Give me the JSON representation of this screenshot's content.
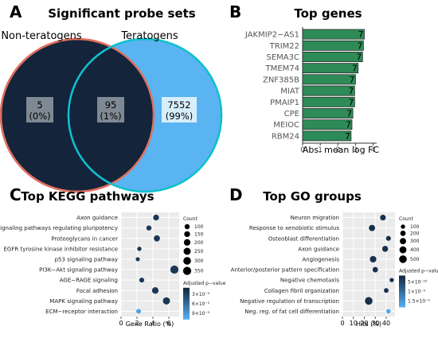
{
  "panel_labels": [
    "A",
    "B",
    "C",
    "D"
  ],
  "chart_data": [
    {
      "type": "venn",
      "title": "Significant probe sets",
      "sets": [
        "Non-teratogens",
        "Teratogens"
      ],
      "regions": [
        {
          "count": "5",
          "percent": "(0%)"
        },
        {
          "count": "95",
          "percent": "(1%)"
        },
        {
          "count": "7552",
          "percent": "(99%)"
        }
      ],
      "colors": {
        "left_fill": "#14243a",
        "left_edge": "#e07060",
        "right_fill": "#5ab4f2",
        "right_edge": "#10c0cc",
        "overlap_fill": "#14243a"
      }
    },
    {
      "type": "bar",
      "orientation": "horizontal",
      "title": "Top genes",
      "categories": [
        "JAKMIP2−AS1",
        "TRIM22",
        "SEMA3C",
        "TMEM74",
        "ZNF385B",
        "MIAT",
        "PMAIP1",
        "CPE",
        "MEIOC",
        "RBM24"
      ],
      "values": [
        3.5,
        3.45,
        3.4,
        3.15,
        3.0,
        2.95,
        2.95,
        2.85,
        2.8,
        2.75
      ],
      "bar_labels": [
        "7",
        "7",
        "7",
        "7",
        "7",
        "7",
        "7",
        "7",
        "7",
        "7"
      ],
      "xlabel": "Abs. mean log FC",
      "xlim": [
        0,
        4.2
      ],
      "xticks": [
        "0",
        "1",
        "2",
        "3",
        "4"
      ],
      "bar_color": "#2e8b57"
    },
    {
      "type": "scatter",
      "title": "Top KEGG pathways",
      "categories": [
        "Axon guidance",
        "Signaling pathways regulating pluripotency",
        "Proteoglycans in cancer",
        "EGFR tyrosine kinase inhibitor resistance",
        "p53 signaling pathway",
        "PI3K−Akt signaling pathway",
        "AGE−RAGE signaling",
        "Focal adhesion",
        "MAPK signaling pathway",
        "ECM−receptor interaction"
      ],
      "x": [
        4.4,
        3.5,
        4.5,
        2.3,
        2.1,
        6.7,
        2.6,
        4.3,
        5.7,
        2.2
      ],
      "sizes": [
        150,
        100,
        170,
        60,
        50,
        350,
        90,
        200,
        250,
        80
      ],
      "padj": [
        3e-05,
        3e-05,
        3e-05,
        3e-05,
        3e-05,
        3e-05,
        3e-05,
        3e-05,
        3e-05,
        9e-05
      ],
      "xlabel": "Gene Ratio (%)",
      "xlim": [
        0,
        7.3
      ],
      "xticks": [
        "0",
        "2",
        "4",
        "6"
      ],
      "legend_size_title": "Count",
      "legend_sizes": [
        "100",
        "150",
        "200",
        "250",
        "300",
        "350"
      ],
      "legend_color_title": "Adjusted p−value",
      "legend_color_ticks": [
        "3×10⁻⁵",
        "6×10⁻⁵",
        "9×10⁻⁵"
      ]
    },
    {
      "type": "scatter",
      "title": "Top GO groups",
      "categories": [
        "Neuron migration",
        "Response to xenobiotic stimulus",
        "Osteoblast differentiation",
        "Axon guidance",
        "Angiogenesis",
        "Anterior/posterior pattern specification",
        "Negative chemotaxis",
        "Collagen fibril organization",
        "Negative regulation of transcription",
        "Neg. reg. of fat cell differentiation"
      ],
      "x": [
        37,
        27,
        42,
        39,
        28,
        30,
        45,
        40,
        24,
        42
      ],
      "sizes": [
        230,
        300,
        150,
        260,
        330,
        200,
        100,
        130,
        500,
        110
      ],
      "padj": [
        5e-11,
        5e-11,
        5e-11,
        5e-11,
        5e-11,
        5e-11,
        5e-11,
        5e-11,
        5e-11,
        1.7e-10
      ],
      "xlabel": "Hits (%)",
      "xlim": [
        0,
        48
      ],
      "xticks": [
        "0",
        "10",
        "20",
        "30",
        "40"
      ],
      "legend_size_title": "Count",
      "legend_sizes": [
        "100",
        "200",
        "300",
        "400",
        "500"
      ],
      "legend_color_title": "Adjusted p−value",
      "legend_color_ticks": [
        "5×10⁻¹⁰",
        "1×10⁻⁹",
        "1.5×10⁻⁹"
      ]
    }
  ]
}
